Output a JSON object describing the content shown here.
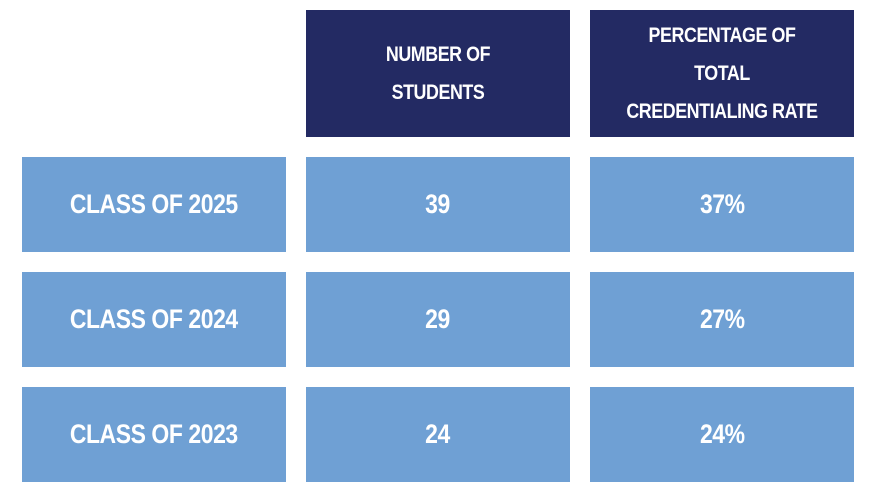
{
  "table": {
    "headers": [
      "NUMBER OF STUDENTS",
      "PERCENTAGE OF TOTAL CREDENTIALING RATE"
    ],
    "rows": [
      [
        "CLASS OF 2025",
        "39",
        "37%"
      ],
      [
        "CLASS OF 2024",
        "29",
        "27%"
      ],
      [
        "CLASS OF 2023",
        "24",
        "24%"
      ]
    ]
  }
}
